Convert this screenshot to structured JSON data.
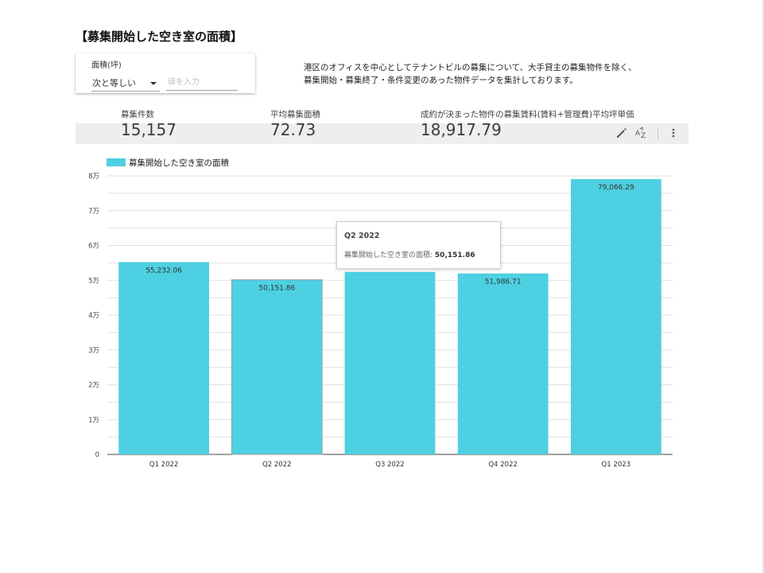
{
  "title": "【募集開始した空き室の面積】",
  "filter": {
    "label": "面積(坪)",
    "operator": "次と等しい",
    "placeholder": "値を入力"
  },
  "description": [
    "港区のオフィスを中心としてテナントビルの募集について、大手貸主の募集物件を除く、",
    "募集開始・募集終了・条件変更のあった物件データを集計しております。"
  ],
  "scorecards": [
    {
      "label": "募集件数",
      "value": "15,157"
    },
    {
      "label": "平均募集面積",
      "value": "72.73"
    },
    {
      "label": "成約が決まった物件の募集賃料(賃料+管理費)平均坪単価",
      "value": "18,917.79"
    }
  ],
  "toolbar": {
    "icons": [
      "pencil-icon",
      "sort-az-icon",
      "more-vert-icon"
    ]
  },
  "tooltip": {
    "title": "Q2 2022",
    "label": "募集開始した空き室の面積:",
    "value": "50,151.86"
  },
  "colors": {
    "bar": "#4dd0e1",
    "grid": "#e0e0e0",
    "scorebar": "#eeeeee"
  },
  "chart_data": {
    "type": "bar",
    "categories": [
      "Q1 2022",
      "Q2 2022",
      "Q3 2022",
      "Q4 2022",
      "Q1 2023"
    ],
    "series": [
      {
        "name": "募集開始した空き室の面積",
        "values": [
          55232.06,
          50151.86,
          52400,
          51986.71,
          79066.29
        ]
      }
    ],
    "data_labels": [
      "55,232.06",
      "50,151.86",
      "",
      "51,986.71",
      "79,066.29"
    ],
    "ylim": [
      0,
      80000
    ],
    "y_ticks": [
      0,
      10000,
      20000,
      30000,
      40000,
      50000,
      60000,
      70000,
      80000
    ],
    "y_tick_labels": [
      "0",
      "1万",
      "2万",
      "3万",
      "4万",
      "5万",
      "6万",
      "7万",
      "8万"
    ],
    "legend": "top-left",
    "grid": true,
    "highlighted_category": "Q2 2022"
  }
}
